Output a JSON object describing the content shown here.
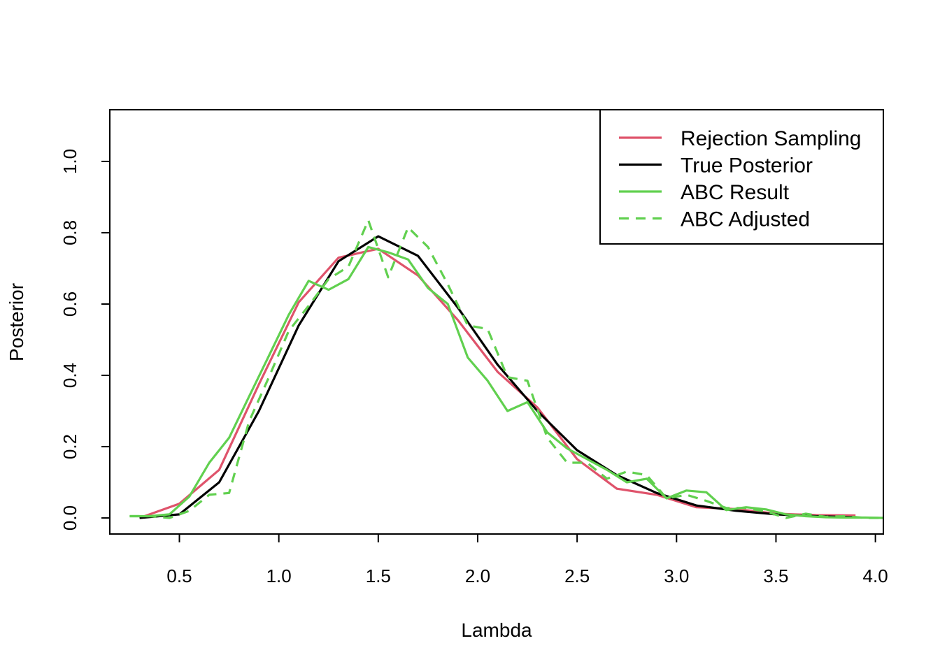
{
  "chart_data": {
    "type": "line",
    "xlabel": "Lambda",
    "ylabel": "Posterior",
    "xlim": [
      0.15,
      4.04
    ],
    "ylim": [
      -0.045,
      1.145
    ],
    "x_ticks": [
      "0.5",
      "1.0",
      "1.5",
      "2.0",
      "2.5",
      "3.0",
      "3.5",
      "4.0"
    ],
    "y_ticks": [
      "0.0",
      "0.2",
      "0.4",
      "0.6",
      "0.8",
      "1.0"
    ],
    "legend_position": "top-right",
    "grid": false,
    "series": [
      {
        "name": "Rejection Sampling",
        "color": "#DF536B",
        "dash": "solid",
        "x": [
          0.3,
          0.5,
          0.7,
          0.9,
          1.1,
          1.3,
          1.5,
          1.7,
          1.9,
          2.1,
          2.3,
          2.5,
          2.7,
          2.9,
          3.1,
          3.3,
          3.5,
          3.7,
          3.9
        ],
        "y": [
          0.0,
          0.04,
          0.135,
          0.375,
          0.605,
          0.73,
          0.755,
          0.68,
          0.555,
          0.41,
          0.31,
          0.165,
          0.082,
          0.065,
          0.03,
          0.025,
          0.012,
          0.008,
          0.007
        ]
      },
      {
        "name": "True Posterior",
        "color": "#000000",
        "dash": "solid",
        "x": [
          0.3,
          0.5,
          0.7,
          0.9,
          1.1,
          1.3,
          1.5,
          1.7,
          1.9,
          2.1,
          2.3,
          2.5,
          2.7,
          2.9,
          3.1,
          3.3,
          3.5,
          3.7,
          3.9
        ],
        "y": [
          0.0,
          0.01,
          0.1,
          0.3,
          0.54,
          0.72,
          0.79,
          0.735,
          0.59,
          0.43,
          0.3,
          0.19,
          0.12,
          0.07,
          0.035,
          0.02,
          0.01,
          0.005,
          0.002
        ]
      },
      {
        "name": "ABC Result",
        "color": "#61D04F",
        "dash": "solid",
        "x": [
          0.25,
          0.35,
          0.45,
          0.55,
          0.65,
          0.75,
          0.85,
          0.95,
          1.05,
          1.15,
          1.25,
          1.35,
          1.45,
          1.55,
          1.65,
          1.75,
          1.85,
          1.95,
          2.05,
          2.15,
          2.25,
          2.35,
          2.45,
          2.55,
          2.65,
          2.75,
          2.85,
          2.95,
          3.05,
          3.15,
          3.25,
          3.35,
          3.45,
          3.55,
          3.65,
          3.75,
          3.85,
          3.95,
          4.04
        ],
        "y": [
          0.005,
          0.005,
          0.01,
          0.06,
          0.155,
          0.225,
          0.34,
          0.455,
          0.57,
          0.665,
          0.64,
          0.67,
          0.76,
          0.745,
          0.725,
          0.645,
          0.6,
          0.45,
          0.385,
          0.3,
          0.325,
          0.24,
          0.195,
          0.165,
          0.135,
          0.1,
          0.11,
          0.055,
          0.077,
          0.072,
          0.022,
          0.03,
          0.024,
          0.01,
          0.005,
          0.002,
          0.001,
          0.001,
          0.0
        ]
      },
      {
        "name": "ABC Adjusted",
        "color": "#61D04F",
        "dash": "dashed",
        "x": [
          0.25,
          0.35,
          0.45,
          0.55,
          0.65,
          0.75,
          0.85,
          0.95,
          1.05,
          1.15,
          1.25,
          1.35,
          1.45,
          1.55,
          1.65,
          1.75,
          1.85,
          1.95,
          2.05,
          2.15,
          2.25,
          2.35,
          2.45,
          2.55,
          2.65,
          2.75,
          2.85,
          2.95,
          3.05,
          3.15,
          3.25,
          3.35,
          3.45,
          3.55,
          3.65,
          3.75,
          3.85,
          3.95,
          4.04
        ],
        "y": [
          0.005,
          0.005,
          0.0,
          0.02,
          0.065,
          0.07,
          0.27,
          0.395,
          0.525,
          0.595,
          0.67,
          0.705,
          0.835,
          0.675,
          0.815,
          0.76,
          0.655,
          0.54,
          0.53,
          0.395,
          0.385,
          0.225,
          0.155,
          0.155,
          0.11,
          0.13,
          0.12,
          0.055,
          0.065,
          0.048,
          0.028,
          0.028,
          0.018,
          0.0,
          0.012,
          0.003,
          0.005,
          0.0,
          0.0
        ]
      }
    ]
  }
}
